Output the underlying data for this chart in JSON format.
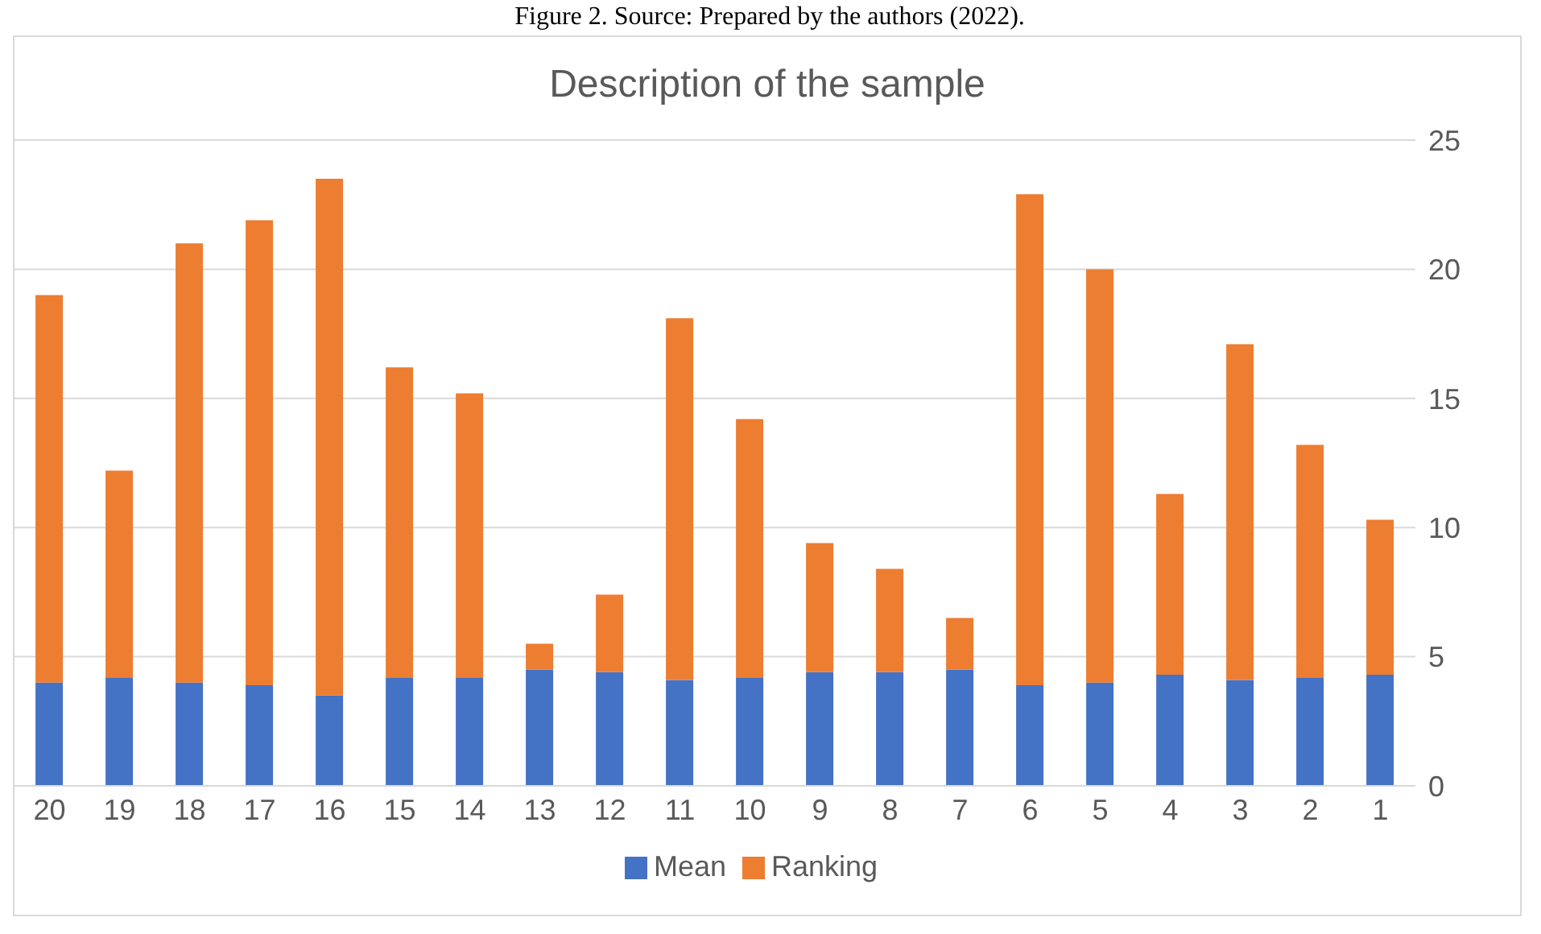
{
  "chart_data": {
    "type": "bar",
    "title": "Description of the sample",
    "annotations": [
      "Figure 2. Source: Prepared by the authors (2022)."
    ],
    "categories": [
      "20",
      "19",
      "18",
      "17",
      "16",
      "15",
      "14",
      "13",
      "12",
      "11",
      "10",
      "9",
      "8",
      "7",
      "6",
      "5",
      "4",
      "3",
      "2",
      "1"
    ],
    "stacked": true,
    "series": [
      {
        "name": "Mean",
        "color": "#4472c4",
        "values": [
          4.0,
          4.2,
          4.0,
          3.9,
          3.5,
          4.2,
          4.2,
          4.5,
          4.4,
          4.1,
          4.2,
          4.4,
          4.4,
          4.5,
          3.9,
          4.0,
          4.3,
          4.1,
          4.2,
          4.3
        ]
      },
      {
        "name": "Ranking",
        "color": "#ed7d31",
        "values": [
          15,
          8,
          17,
          18,
          20,
          12,
          11,
          1,
          3,
          14,
          10,
          5,
          4,
          2,
          19,
          16,
          7,
          13,
          9,
          6
        ]
      }
    ],
    "ylim": [
      0,
      25
    ],
    "yticks": [
      0,
      5,
      10,
      15,
      20,
      25
    ],
    "grid": "y",
    "legend": "bottom"
  }
}
